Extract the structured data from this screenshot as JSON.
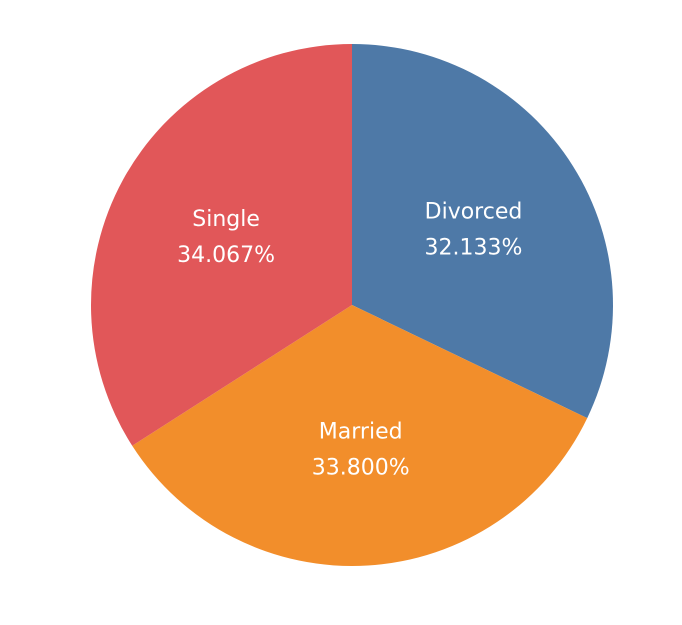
{
  "chart_data": {
    "type": "pie",
    "title": "",
    "start_angle_deg": 0,
    "direction": "clockwise",
    "legend": "none",
    "slices": [
      {
        "name": "Divorced",
        "value": 32.133,
        "value_label": "32.133%",
        "color": "#4e79a7"
      },
      {
        "name": "Married",
        "value": 33.8,
        "value_label": "33.800%",
        "color": "#f28e2b"
      },
      {
        "name": "Single",
        "value": 34.067,
        "value_label": "34.067%",
        "color": "#e15759"
      }
    ]
  }
}
